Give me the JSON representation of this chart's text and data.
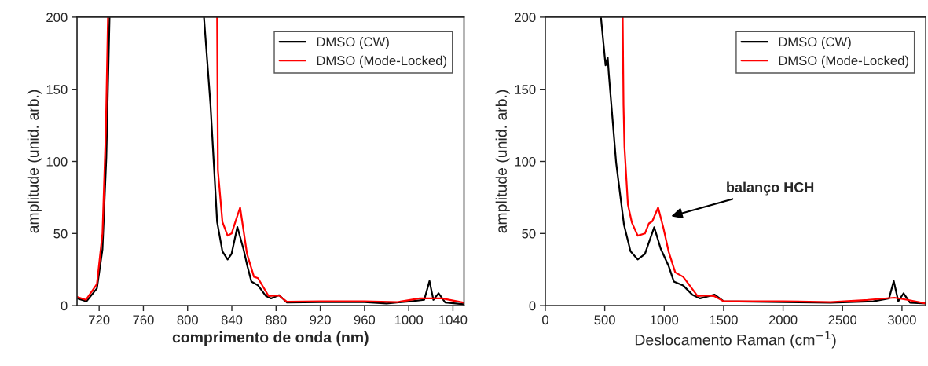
{
  "chart_data": [
    {
      "type": "line",
      "xlabel": "comprimento de onda (nm)",
      "ylabel": "amplitude (unid. arb.)",
      "xlim": [
        700,
        1050
      ],
      "ylim": [
        0,
        200
      ],
      "xticks": [
        720,
        760,
        800,
        840,
        880,
        920,
        960,
        1000,
        1040
      ],
      "yticks": [
        0,
        50,
        100,
        150,
        200
      ],
      "legend": "top right",
      "grid": false,
      "series": [
        {
          "name": "DMSO (CW)",
          "color": "#000000",
          "x": [
            700,
            708.6,
            718,
            723,
            726.5,
            729.4,
            770,
            814.8,
            820.7,
            826.7,
            831.5,
            836.2,
            839.8,
            845,
            850.6,
            854,
            857.7,
            863.7,
            870.8,
            875.5,
            882.7,
            889.9,
            920,
            960,
            980,
            1002,
            1014,
            1018.8,
            1022.3,
            1027,
            1033,
            1050
          ],
          "values": [
            5,
            3,
            12,
            39,
            103,
            200,
            null,
            200,
            139.5,
            58,
            37.6,
            32,
            36,
            54.5,
            39,
            27.6,
            16.7,
            14,
            6.7,
            5,
            7.3,
            2.2,
            2.5,
            2.5,
            1.5,
            3,
            4,
            17,
            4,
            8.6,
            2.2,
            1
          ]
        },
        {
          "name": "DMSO (Mode-Locked)",
          "color": "#ff0000",
          "x": [
            700,
            708,
            718,
            723,
            726,
            728,
            780,
            826.7,
            827.4,
            831.5,
            836.2,
            839.8,
            843.4,
            847.5,
            853.7,
            860,
            863.7,
            873.2,
            882.7,
            889.7,
            920,
            960,
            990,
            1010,
            1030,
            1050
          ],
          "values": [
            6,
            4,
            15,
            50,
            120,
            200,
            null,
            200,
            94,
            58,
            48.5,
            50,
            58.5,
            68,
            36,
            20,
            19,
            6.7,
            7,
            2.7,
            3,
            3,
            2.5,
            5,
            5,
            2
          ]
        }
      ]
    },
    {
      "type": "line",
      "xlabel": "Deslocamento Raman (cm$^{−1}$)",
      "ylabel": "amplitude (unid. arb.)",
      "xlim": [
        0,
        3200
      ],
      "ylim": [
        0,
        200
      ],
      "xticks": [
        0,
        500,
        1000,
        1500,
        2000,
        2500,
        3000
      ],
      "yticks": [
        0,
        50,
        100,
        150,
        200
      ],
      "legend": "top right",
      "grid": false,
      "annotations": [
        "balanço HCH"
      ],
      "series": [
        {
          "name": "DMSO (CW)",
          "color": "#000000",
          "x": [
            468,
            507,
            525,
            534,
            563,
            596,
            662,
            717,
            777,
            838,
            916,
            971,
            1037,
            1081,
            1159,
            1236,
            1302,
            1424,
            1501,
            2000,
            2400,
            2759,
            2891,
            2931,
            2969,
            3013,
            3068,
            3200
          ],
          "values": [
            200,
            166.6,
            172,
            161,
            132,
            99,
            56,
            37.6,
            32,
            35.8,
            54.3,
            39.4,
            27.6,
            16.7,
            14,
            7.6,
            5,
            7.6,
            3,
            2.5,
            2,
            3,
            5,
            17,
            3,
            8.5,
            2,
            1.5
          ]
        },
        {
          "name": "DMSO (Mode-Locked)",
          "color": "#ff0000",
          "x": [
            651,
            658,
            666,
            695,
            728,
            777,
            838,
            872,
            900,
            949,
            993,
            1037,
            1093,
            1159,
            1214,
            1280,
            1368,
            1424,
            1501,
            2000,
            2400,
            2715,
            2936,
            3046,
            3200
          ],
          "values": [
            200,
            139,
            110,
            70,
            57.6,
            48.5,
            50,
            57,
            58.5,
            68,
            54,
            37.6,
            23,
            20,
            14,
            6.7,
            7,
            6.5,
            3,
            3,
            2.5,
            4,
            5.5,
            4,
            1.5
          ]
        }
      ]
    }
  ]
}
